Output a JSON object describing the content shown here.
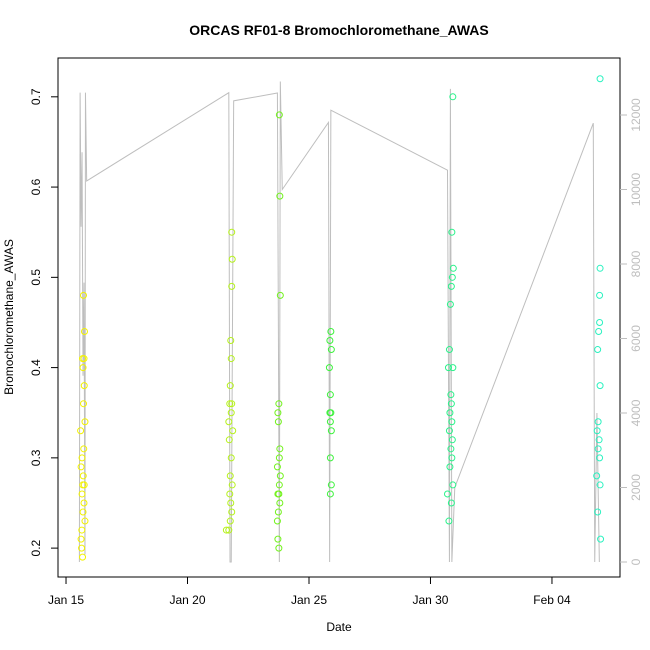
{
  "chart_data": {
    "type": "scatter",
    "title": "ORCAS RF01-8 Bromochloromethane_AWAS",
    "x_label": "Date",
    "y_label": "Bromochloromethane_AWAS",
    "xlim": [
      14.67,
      37.8
    ],
    "ylim": [
      0.168,
      0.743
    ],
    "y2lim": [
      -403,
      13530
    ],
    "xticks": [
      {
        "value": 15,
        "label": "Jan 15"
      },
      {
        "value": 20,
        "label": "Jan 20"
      },
      {
        "value": 25,
        "label": "Jan 25"
      },
      {
        "value": 30,
        "label": "Jan 30"
      },
      {
        "value": 35,
        "label": "Feb 04"
      }
    ],
    "yticks": [
      0.2,
      0.3,
      0.4,
      0.5,
      0.6,
      0.7
    ],
    "y2ticks": [
      0,
      2000,
      4000,
      6000,
      8000,
      10000,
      12000
    ],
    "series": [
      {
        "color": "#bebebe",
        "axis": "y2",
        "x": [
          15.55,
          15.58,
          15.62,
          15.66,
          15.7,
          15.74,
          15.78,
          15.8,
          15.85,
          21.7,
          21.75,
          21.8,
          21.9,
          23.7,
          23.78,
          23.82,
          23.9,
          25.8,
          25.85,
          25.9,
          30.7,
          30.78,
          30.82,
          30.88,
          31.0,
          36.7,
          36.76,
          36.85,
          36.95
        ],
        "values": [
          0,
          12600,
          9000,
          11000,
          5000,
          7500,
          200,
          12600,
          10230,
          12600,
          0,
          0,
          12380,
          12590,
          0,
          12900,
          10000,
          11800,
          0,
          12130,
          10520,
          0,
          12700,
          0,
          2000,
          11780,
          0,
          4000,
          0
        ]
      },
      {
        "color": "#f2f200",
        "x": [
          15.72,
          15.76,
          15.68,
          15.74,
          15.7,
          15.75,
          15.72,
          15.78,
          15.6,
          15.73,
          15.66,
          15.62,
          15.71,
          15.69,
          15.75,
          15.66,
          15.74,
          15.7,
          15.78,
          15.65,
          15.62,
          15.64,
          15.68
        ],
        "values": [
          0.48,
          0.44,
          0.41,
          0.41,
          0.4,
          0.38,
          0.36,
          0.34,
          0.33,
          0.31,
          0.3,
          0.29,
          0.28,
          0.27,
          0.27,
          0.26,
          0.25,
          0.24,
          0.23,
          0.22,
          0.21,
          0.2,
          0.19
        ]
      },
      {
        "color": "#b6f21c",
        "x": [
          21.82,
          21.84,
          21.82,
          21.78,
          21.8,
          21.76,
          21.74,
          21.82,
          21.8,
          21.7,
          21.86,
          21.72,
          21.8,
          21.76,
          21.84,
          21.74,
          21.78,
          21.82,
          21.76,
          21.6,
          21.7
        ],
        "values": [
          0.55,
          0.52,
          0.49,
          0.43,
          0.41,
          0.38,
          0.36,
          0.36,
          0.35,
          0.34,
          0.33,
          0.32,
          0.3,
          0.28,
          0.27,
          0.26,
          0.25,
          0.24,
          0.23,
          0.22,
          0.22
        ]
      },
      {
        "color": "#72f21c",
        "x": [
          23.78,
          23.8,
          23.82,
          23.76,
          23.72,
          23.74,
          23.8,
          23.78,
          23.7,
          23.82,
          23.78,
          23.72,
          23.76,
          23.8,
          23.74,
          23.7,
          23.72,
          23.76
        ],
        "values": [
          0.68,
          0.59,
          0.48,
          0.36,
          0.35,
          0.34,
          0.31,
          0.3,
          0.29,
          0.28,
          0.27,
          0.26,
          0.26,
          0.25,
          0.24,
          0.23,
          0.21,
          0.2
        ]
      },
      {
        "color": "#3cf23c",
        "x": [
          25.9,
          25.86,
          25.92,
          25.84,
          25.88,
          25.86,
          25.9,
          25.88,
          25.92,
          25.88,
          25.92,
          25.88
        ],
        "values": [
          0.44,
          0.43,
          0.42,
          0.4,
          0.37,
          0.35,
          0.35,
          0.34,
          0.33,
          0.3,
          0.27,
          0.26
        ]
      },
      {
        "color": "#2af28a",
        "x": [
          30.92,
          30.88,
          30.94,
          30.9,
          30.86,
          30.82,
          30.78,
          30.74,
          30.92,
          30.84,
          30.86,
          30.8,
          30.88,
          30.78,
          30.9,
          30.84,
          30.88,
          30.8,
          30.92,
          30.7,
          30.86,
          30.76
        ],
        "values": [
          0.7,
          0.55,
          0.51,
          0.5,
          0.49,
          0.47,
          0.42,
          0.4,
          0.4,
          0.37,
          0.36,
          0.35,
          0.34,
          0.33,
          0.32,
          0.31,
          0.3,
          0.29,
          0.27,
          0.26,
          0.25,
          0.23
        ]
      },
      {
        "color": "#2af2c0",
        "x": [
          36.98,
          36.98,
          36.96,
          36.96,
          36.92,
          36.88,
          36.98,
          36.9,
          36.86,
          36.94,
          36.9,
          36.96,
          36.84,
          36.98,
          36.88,
          37.0
        ],
        "values": [
          0.72,
          0.51,
          0.48,
          0.45,
          0.44,
          0.42,
          0.38,
          0.34,
          0.33,
          0.32,
          0.31,
          0.3,
          0.28,
          0.27,
          0.24,
          0.21
        ]
      }
    ]
  }
}
